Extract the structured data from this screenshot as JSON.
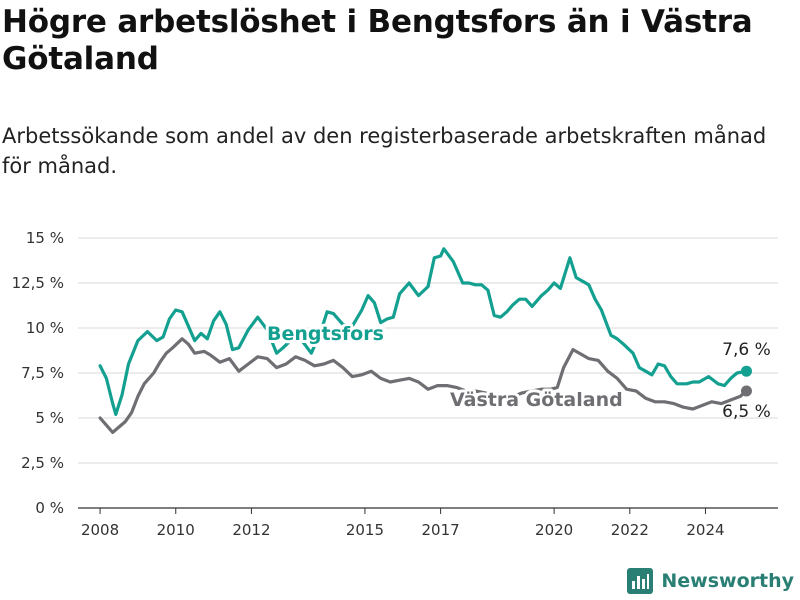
{
  "title": "Högre arbetslöshet i Bengtsfors än i Västra Götaland",
  "subtitle": "Arbetssökande som andel av den registerbaserade arbetskraften månad för månad.",
  "brand": {
    "name": "Newsworthy",
    "icon": "bar-chart-logo-icon"
  },
  "colors": {
    "bengtsfors": "#14a090",
    "vastra_gotaland": "#6e6e73",
    "grid": "#d9d9d9"
  },
  "chart_data": {
    "type": "line",
    "title": "Högre arbetslöshet i Bengtsfors än i Västra Götaland",
    "ylabel": "",
    "xlabel": "",
    "ylim": [
      0,
      15
    ],
    "xlim": [
      "2007-06",
      "2025-12"
    ],
    "grid": true,
    "y_ticks": [
      {
        "value": 0,
        "label": "0 %"
      },
      {
        "value": 2.5,
        "label": "2,5 %"
      },
      {
        "value": 5,
        "label": "5 %"
      },
      {
        "value": 7.5,
        "label": "7,5 %"
      },
      {
        "value": 10,
        "label": "10 %"
      },
      {
        "value": 12.5,
        "label": "12,5 %"
      },
      {
        "value": 15,
        "label": "15 %"
      }
    ],
    "x_ticks": [
      {
        "value": "2008-01",
        "label": "2008"
      },
      {
        "value": "2010-01",
        "label": "2010"
      },
      {
        "value": "2012-01",
        "label": "2012"
      },
      {
        "value": "2015-01",
        "label": "2015"
      },
      {
        "value": "2017-01",
        "label": "2017"
      },
      {
        "value": "2020-01",
        "label": "2020"
      },
      {
        "value": "2022-01",
        "label": "2022"
      },
      {
        "value": "2024-01",
        "label": "2024"
      }
    ],
    "series": [
      {
        "name": "Bengtsfors",
        "end_label": "7,6 %",
        "points": [
          [
            "2008-01",
            7.9
          ],
          [
            "2008-03",
            7.2
          ],
          [
            "2008-05",
            5.8
          ],
          [
            "2008-06",
            5.2
          ],
          [
            "2008-08",
            6.3
          ],
          [
            "2008-10",
            8.0
          ],
          [
            "2009-01",
            9.3
          ],
          [
            "2009-04",
            9.8
          ],
          [
            "2009-07",
            9.3
          ],
          [
            "2009-09",
            9.5
          ],
          [
            "2009-11",
            10.5
          ],
          [
            "2010-01",
            11.0
          ],
          [
            "2010-03",
            10.9
          ],
          [
            "2010-05",
            10.1
          ],
          [
            "2010-07",
            9.3
          ],
          [
            "2010-09",
            9.7
          ],
          [
            "2010-11",
            9.4
          ],
          [
            "2011-01",
            10.4
          ],
          [
            "2011-03",
            10.9
          ],
          [
            "2011-05",
            10.2
          ],
          [
            "2011-07",
            8.8
          ],
          [
            "2011-09",
            8.9
          ],
          [
            "2011-12",
            9.9
          ],
          [
            "2012-03",
            10.6
          ],
          [
            "2012-06",
            9.9
          ],
          [
            "2012-09",
            8.6
          ],
          [
            "2012-11",
            8.9
          ],
          [
            "2013-02",
            9.4
          ],
          [
            "2013-05",
            9.3
          ],
          [
            "2013-08",
            8.6
          ],
          [
            "2013-11",
            9.8
          ],
          [
            "2014-01",
            10.9
          ],
          [
            "2014-03",
            10.8
          ],
          [
            "2014-06",
            10.2
          ],
          [
            "2014-09",
            10.1
          ],
          [
            "2014-12",
            11.0
          ],
          [
            "2015-02",
            11.8
          ],
          [
            "2015-04",
            11.4
          ],
          [
            "2015-06",
            10.3
          ],
          [
            "2015-08",
            10.5
          ],
          [
            "2015-10",
            10.6
          ],
          [
            "2015-12",
            11.9
          ],
          [
            "2016-03",
            12.5
          ],
          [
            "2016-06",
            11.8
          ],
          [
            "2016-09",
            12.3
          ],
          [
            "2016-11",
            13.9
          ],
          [
            "2017-01",
            14.0
          ],
          [
            "2017-02",
            14.4
          ],
          [
            "2017-05",
            13.7
          ],
          [
            "2017-08",
            12.5
          ],
          [
            "2017-10",
            12.5
          ],
          [
            "2017-12",
            12.4
          ],
          [
            "2018-02",
            12.4
          ],
          [
            "2018-04",
            12.1
          ],
          [
            "2018-06",
            10.7
          ],
          [
            "2018-08",
            10.6
          ],
          [
            "2018-10",
            10.9
          ],
          [
            "2018-12",
            11.3
          ],
          [
            "2019-02",
            11.6
          ],
          [
            "2019-04",
            11.6
          ],
          [
            "2019-06",
            11.2
          ],
          [
            "2019-09",
            11.8
          ],
          [
            "2019-11",
            12.1
          ],
          [
            "2020-01",
            12.5
          ],
          [
            "2020-03",
            12.2
          ],
          [
            "2020-06",
            13.9
          ],
          [
            "2020-08",
            12.8
          ],
          [
            "2020-10",
            12.6
          ],
          [
            "2020-12",
            12.4
          ],
          [
            "2021-02",
            11.6
          ],
          [
            "2021-04",
            11.0
          ],
          [
            "2021-07",
            9.6
          ],
          [
            "2021-09",
            9.4
          ],
          [
            "2021-11",
            9.1
          ],
          [
            "2022-02",
            8.6
          ],
          [
            "2022-04",
            7.8
          ],
          [
            "2022-06",
            7.6
          ],
          [
            "2022-08",
            7.4
          ],
          [
            "2022-10",
            8.0
          ],
          [
            "2022-12",
            7.9
          ],
          [
            "2023-02",
            7.3
          ],
          [
            "2023-04",
            6.9
          ],
          [
            "2023-07",
            6.9
          ],
          [
            "2023-09",
            7.0
          ],
          [
            "2023-11",
            7.0
          ],
          [
            "2024-02",
            7.3
          ],
          [
            "2024-05",
            6.9
          ],
          [
            "2024-07",
            6.8
          ],
          [
            "2024-09",
            7.2
          ],
          [
            "2024-11",
            7.5
          ],
          [
            "2025-02",
            7.6
          ]
        ]
      },
      {
        "name": "Västra Götaland",
        "end_label": "6,5 %",
        "points": [
          [
            "2008-01",
            5.0
          ],
          [
            "2008-03",
            4.6
          ],
          [
            "2008-05",
            4.2
          ],
          [
            "2008-07",
            4.5
          ],
          [
            "2008-09",
            4.8
          ],
          [
            "2008-11",
            5.3
          ],
          [
            "2009-01",
            6.2
          ],
          [
            "2009-03",
            6.9
          ],
          [
            "2009-06",
            7.5
          ],
          [
            "2009-08",
            8.1
          ],
          [
            "2009-10",
            8.6
          ],
          [
            "2009-12",
            8.9
          ],
          [
            "2010-03",
            9.4
          ],
          [
            "2010-05",
            9.1
          ],
          [
            "2010-07",
            8.6
          ],
          [
            "2010-10",
            8.7
          ],
          [
            "2010-12",
            8.5
          ],
          [
            "2011-03",
            8.1
          ],
          [
            "2011-06",
            8.3
          ],
          [
            "2011-09",
            7.6
          ],
          [
            "2011-12",
            8.0
          ],
          [
            "2012-03",
            8.4
          ],
          [
            "2012-06",
            8.3
          ],
          [
            "2012-09",
            7.8
          ],
          [
            "2012-12",
            8.0
          ],
          [
            "2013-03",
            8.4
          ],
          [
            "2013-06",
            8.2
          ],
          [
            "2013-09",
            7.9
          ],
          [
            "2013-12",
            8.0
          ],
          [
            "2014-03",
            8.2
          ],
          [
            "2014-06",
            7.8
          ],
          [
            "2014-09",
            7.3
          ],
          [
            "2014-12",
            7.4
          ],
          [
            "2015-03",
            7.6
          ],
          [
            "2015-06",
            7.2
          ],
          [
            "2015-09",
            7.0
          ],
          [
            "2015-12",
            7.1
          ],
          [
            "2016-03",
            7.2
          ],
          [
            "2016-06",
            7.0
          ],
          [
            "2016-09",
            6.6
          ],
          [
            "2016-12",
            6.8
          ],
          [
            "2017-03",
            6.8
          ],
          [
            "2017-06",
            6.7
          ],
          [
            "2017-09",
            6.5
          ],
          [
            "2017-12",
            6.5
          ],
          [
            "2018-03",
            6.4
          ],
          [
            "2018-06",
            6.3
          ],
          [
            "2018-09",
            6.2
          ],
          [
            "2018-12",
            6.2
          ],
          [
            "2019-03",
            6.4
          ],
          [
            "2019-06",
            6.5
          ],
          [
            "2019-09",
            6.6
          ],
          [
            "2019-12",
            6.6
          ],
          [
            "2020-02",
            6.7
          ],
          [
            "2020-04",
            7.8
          ],
          [
            "2020-07",
            8.8
          ],
          [
            "2020-10",
            8.5
          ],
          [
            "2020-12",
            8.3
          ],
          [
            "2021-03",
            8.2
          ],
          [
            "2021-06",
            7.6
          ],
          [
            "2021-09",
            7.2
          ],
          [
            "2021-12",
            6.6
          ],
          [
            "2022-03",
            6.5
          ],
          [
            "2022-06",
            6.1
          ],
          [
            "2022-09",
            5.9
          ],
          [
            "2022-12",
            5.9
          ],
          [
            "2023-03",
            5.8
          ],
          [
            "2023-06",
            5.6
          ],
          [
            "2023-09",
            5.5
          ],
          [
            "2023-12",
            5.7
          ],
          [
            "2024-03",
            5.9
          ],
          [
            "2024-06",
            5.8
          ],
          [
            "2024-09",
            6.0
          ],
          [
            "2024-12",
            6.2
          ],
          [
            "2025-02",
            6.5
          ]
        ]
      }
    ]
  }
}
